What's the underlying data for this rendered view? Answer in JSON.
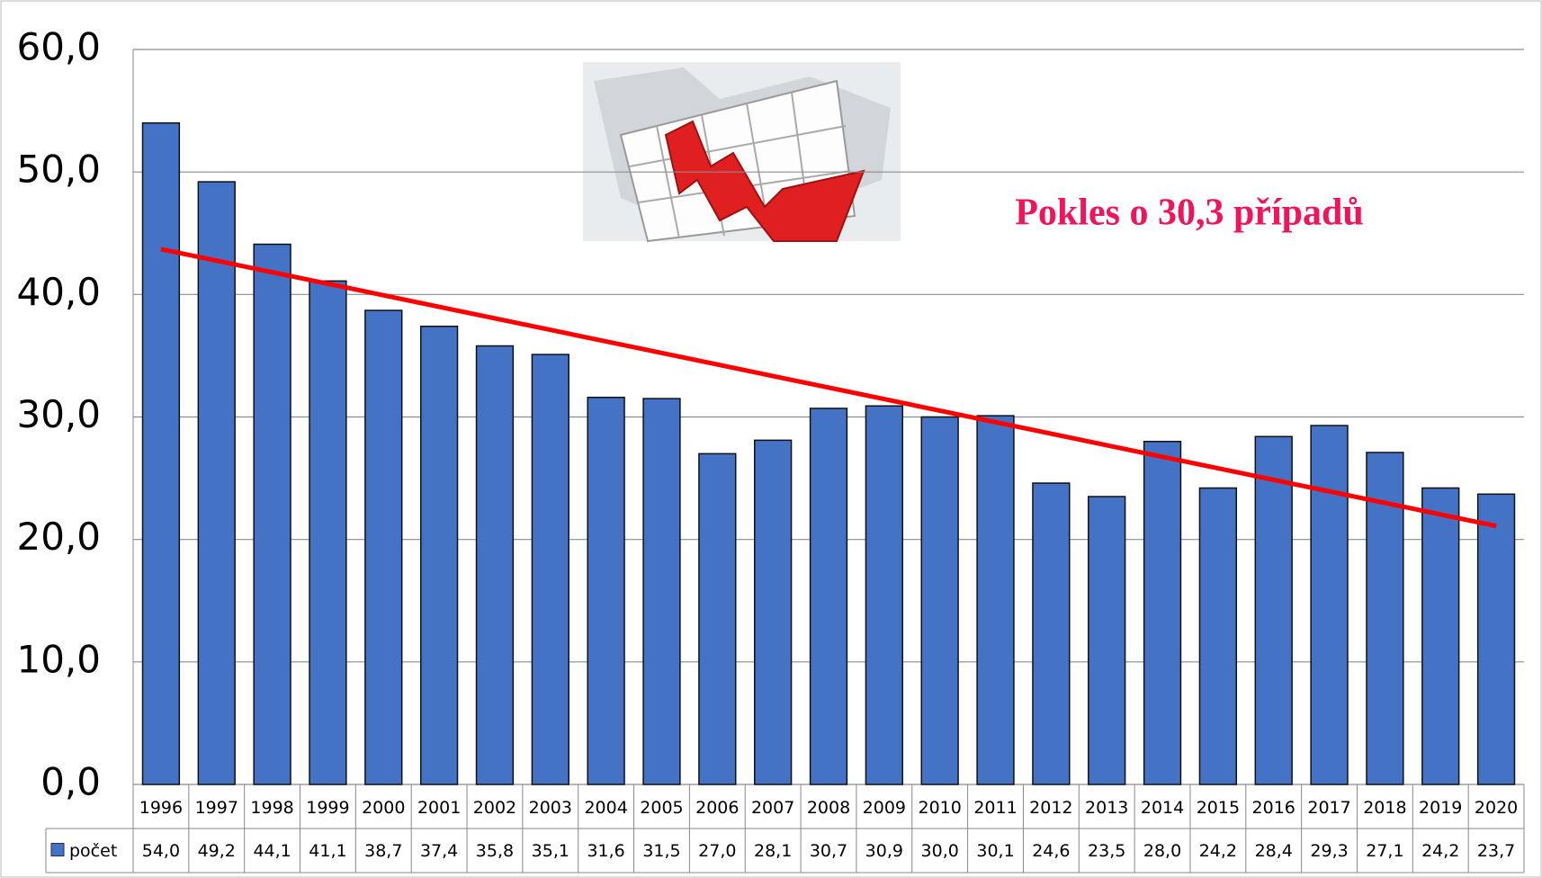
{
  "chart_data": {
    "type": "bar",
    "annotation": "Pokles o 30,3 případů",
    "categories": [
      "1996",
      "1997",
      "1998",
      "1999",
      "2000",
      "2001",
      "2002",
      "2003",
      "2004",
      "2005",
      "2006",
      "2007",
      "2008",
      "2009",
      "2010",
      "2011",
      "2012",
      "2013",
      "2014",
      "2015",
      "2016",
      "2017",
      "2018",
      "2019",
      "2020"
    ],
    "series": [
      {
        "name": "počet",
        "color": "#4472c4",
        "values": [
          54.0,
          49.2,
          44.1,
          41.1,
          38.7,
          37.4,
          35.8,
          35.1,
          31.6,
          31.5,
          27.0,
          28.1,
          30.7,
          30.9,
          30.0,
          30.1,
          24.6,
          23.5,
          28.0,
          24.2,
          28.4,
          29.3,
          27.1,
          24.2,
          23.7
        ],
        "value_labels": [
          "54,0",
          "49,2",
          "44,1",
          "41,1",
          "38,7",
          "37,4",
          "35,8",
          "35,1",
          "31,6",
          "31,5",
          "27,0",
          "28,1",
          "30,7",
          "30,9",
          "30,0",
          "30,1",
          "24,6",
          "23,5",
          "28,0",
          "24,2",
          "28,4",
          "29,3",
          "27,1",
          "24,2",
          "23,7"
        ]
      }
    ],
    "trend_line": {
      "color": "#ff0000",
      "values": [
        43.7,
        21.1
      ]
    },
    "ylim": [
      0,
      60
    ],
    "yticks": [
      {
        "value": 0,
        "label": "0,0"
      },
      {
        "value": 10,
        "label": "10,0"
      },
      {
        "value": 20,
        "label": "20,0"
      },
      {
        "value": 30,
        "label": "30,0"
      },
      {
        "value": 40,
        "label": "40,0"
      },
      {
        "value": 50,
        "label": "50,0"
      },
      {
        "value": 60,
        "label": "60,0"
      }
    ],
    "grid": true
  }
}
